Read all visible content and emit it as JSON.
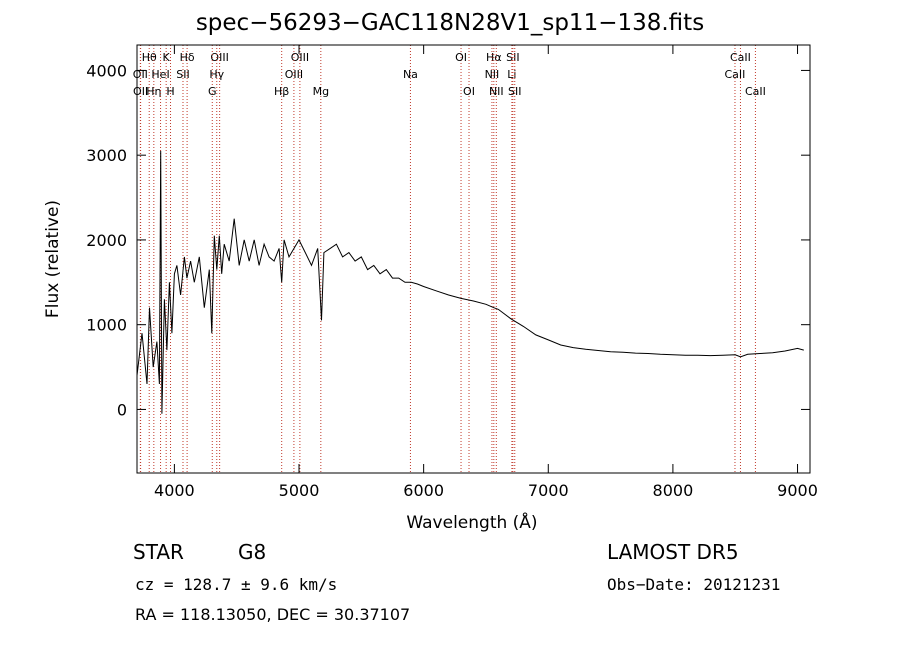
{
  "chart_data": {
    "type": "line",
    "title": "spec−56293−GAC118N28V1_sp11−138.fits",
    "xlabel": "Wavelength (Å)",
    "ylabel": "Flux (relative)",
    "xlim": [
      3700,
      9100
    ],
    "ylim": [
      -750,
      4300
    ],
    "xticks": [
      4000,
      5000,
      6000,
      7000,
      8000,
      9000
    ],
    "yticks": [
      0,
      1000,
      2000,
      3000,
      4000
    ],
    "grid": false,
    "series": [
      {
        "x": [
          3700,
          3740,
          3780,
          3800,
          3830,
          3860,
          3880,
          3890,
          3900,
          3920,
          3940,
          3960,
          3980,
          4000,
          4020,
          4050,
          4080,
          4100,
          4130,
          4160,
          4200,
          4240,
          4280,
          4300,
          4320,
          4340,
          4360,
          4380,
          4400,
          4440,
          4480,
          4520,
          4560,
          4600,
          4640,
          4680,
          4720,
          4760,
          4800,
          4840,
          4861,
          4880,
          4920,
          4960,
          5000,
          5050,
          5100,
          5150,
          5180,
          5200,
          5250,
          5300,
          5350,
          5400,
          5450,
          5500,
          5550,
          5600,
          5650,
          5700,
          5750,
          5800,
          5850,
          5900,
          5950,
          6000,
          6100,
          6200,
          6300,
          6400,
          6500,
          6563,
          6600,
          6700,
          6800,
          6900,
          7000,
          7100,
          7200,
          7300,
          7400,
          7500,
          7600,
          7700,
          7800,
          7900,
          8000,
          8100,
          8200,
          8300,
          8400,
          8500,
          8542,
          8600,
          8700,
          8800,
          8900,
          9000,
          9050
        ],
        "y": [
          400,
          900,
          300,
          1200,
          500,
          800,
          300,
          3050,
          -50,
          1300,
          700,
          1500,
          900,
          1600,
          1700,
          1350,
          1800,
          1550,
          1750,
          1500,
          1800,
          1200,
          1650,
          900,
          2050,
          1650,
          2050,
          1600,
          1950,
          1750,
          2250,
          1700,
          2000,
          1750,
          2000,
          1700,
          1950,
          1800,
          1750,
          1900,
          1500,
          2000,
          1800,
          1900,
          2000,
          1850,
          1700,
          1900,
          1050,
          1850,
          1900,
          1950,
          1800,
          1850,
          1750,
          1800,
          1650,
          1700,
          1600,
          1650,
          1550,
          1550,
          1500,
          1500,
          1480,
          1450,
          1400,
          1350,
          1310,
          1280,
          1240,
          1200,
          1180,
          1070,
          980,
          880,
          820,
          760,
          730,
          710,
          695,
          680,
          675,
          665,
          660,
          650,
          645,
          640,
          640,
          635,
          640,
          645,
          620,
          650,
          660,
          670,
          690,
          720,
          700
        ]
      }
    ],
    "line_marks": [
      {
        "name": "Hθ",
        "x": 3798,
        "row": 1
      },
      {
        "name": "OII",
        "x": 3727,
        "row": 2
      },
      {
        "name": "OII",
        "x": 3729,
        "row": 3
      },
      {
        "name": "Hη",
        "x": 3835,
        "row": 3
      },
      {
        "name": "HeI",
        "x": 3889,
        "row": 2
      },
      {
        "name": "K",
        "x": 3934,
        "row": 1
      },
      {
        "name": "H",
        "x": 3969,
        "row": 3
      },
      {
        "name": "SII",
        "x": 4069,
        "row": 2
      },
      {
        "name": "Hδ",
        "x": 4102,
        "row": 1
      },
      {
        "name": "OIII",
        "x": 4363,
        "row": 1
      },
      {
        "name": "Hγ",
        "x": 4340,
        "row": 2
      },
      {
        "name": "G",
        "x": 4304,
        "row": 3
      },
      {
        "name": "OIII",
        "x": 5007,
        "row": 1
      },
      {
        "name": "OIII",
        "x": 4959,
        "row": 2
      },
      {
        "name": "Hβ",
        "x": 4861,
        "row": 3
      },
      {
        "name": "Mg",
        "x": 5175,
        "row": 3
      },
      {
        "name": "Na",
        "x": 5894,
        "row": 2
      },
      {
        "name": "OI",
        "x": 6300,
        "row": 1
      },
      {
        "name": "OI",
        "x": 6364,
        "row": 3
      },
      {
        "name": "Hα",
        "x": 6563,
        "row": 1
      },
      {
        "name": "NII",
        "x": 6548,
        "row": 2
      },
      {
        "name": "NII",
        "x": 6583,
        "row": 3
      },
      {
        "name": "SII",
        "x": 6716,
        "row": 1
      },
      {
        "name": "Li",
        "x": 6708,
        "row": 2
      },
      {
        "name": "SII",
        "x": 6731,
        "row": 3
      },
      {
        "name": "CaII",
        "x": 8542,
        "row": 1
      },
      {
        "name": "CaII",
        "x": 8498,
        "row": 2
      },
      {
        "name": "CaII",
        "x": 8662,
        "row": 3
      }
    ]
  },
  "info": {
    "object_type": "STAR",
    "subclass": "G8",
    "survey": "LAMOST DR5",
    "redshift": "cz = 128.7 ± 9.6 km/s",
    "obs_date": "Obs−Date: 20121231",
    "coords": "RA = 118.13050, DEC =  30.37107"
  },
  "colors": {
    "spectrum": "#000000",
    "line_marks": "#c0392b",
    "axes": "#000000"
  }
}
